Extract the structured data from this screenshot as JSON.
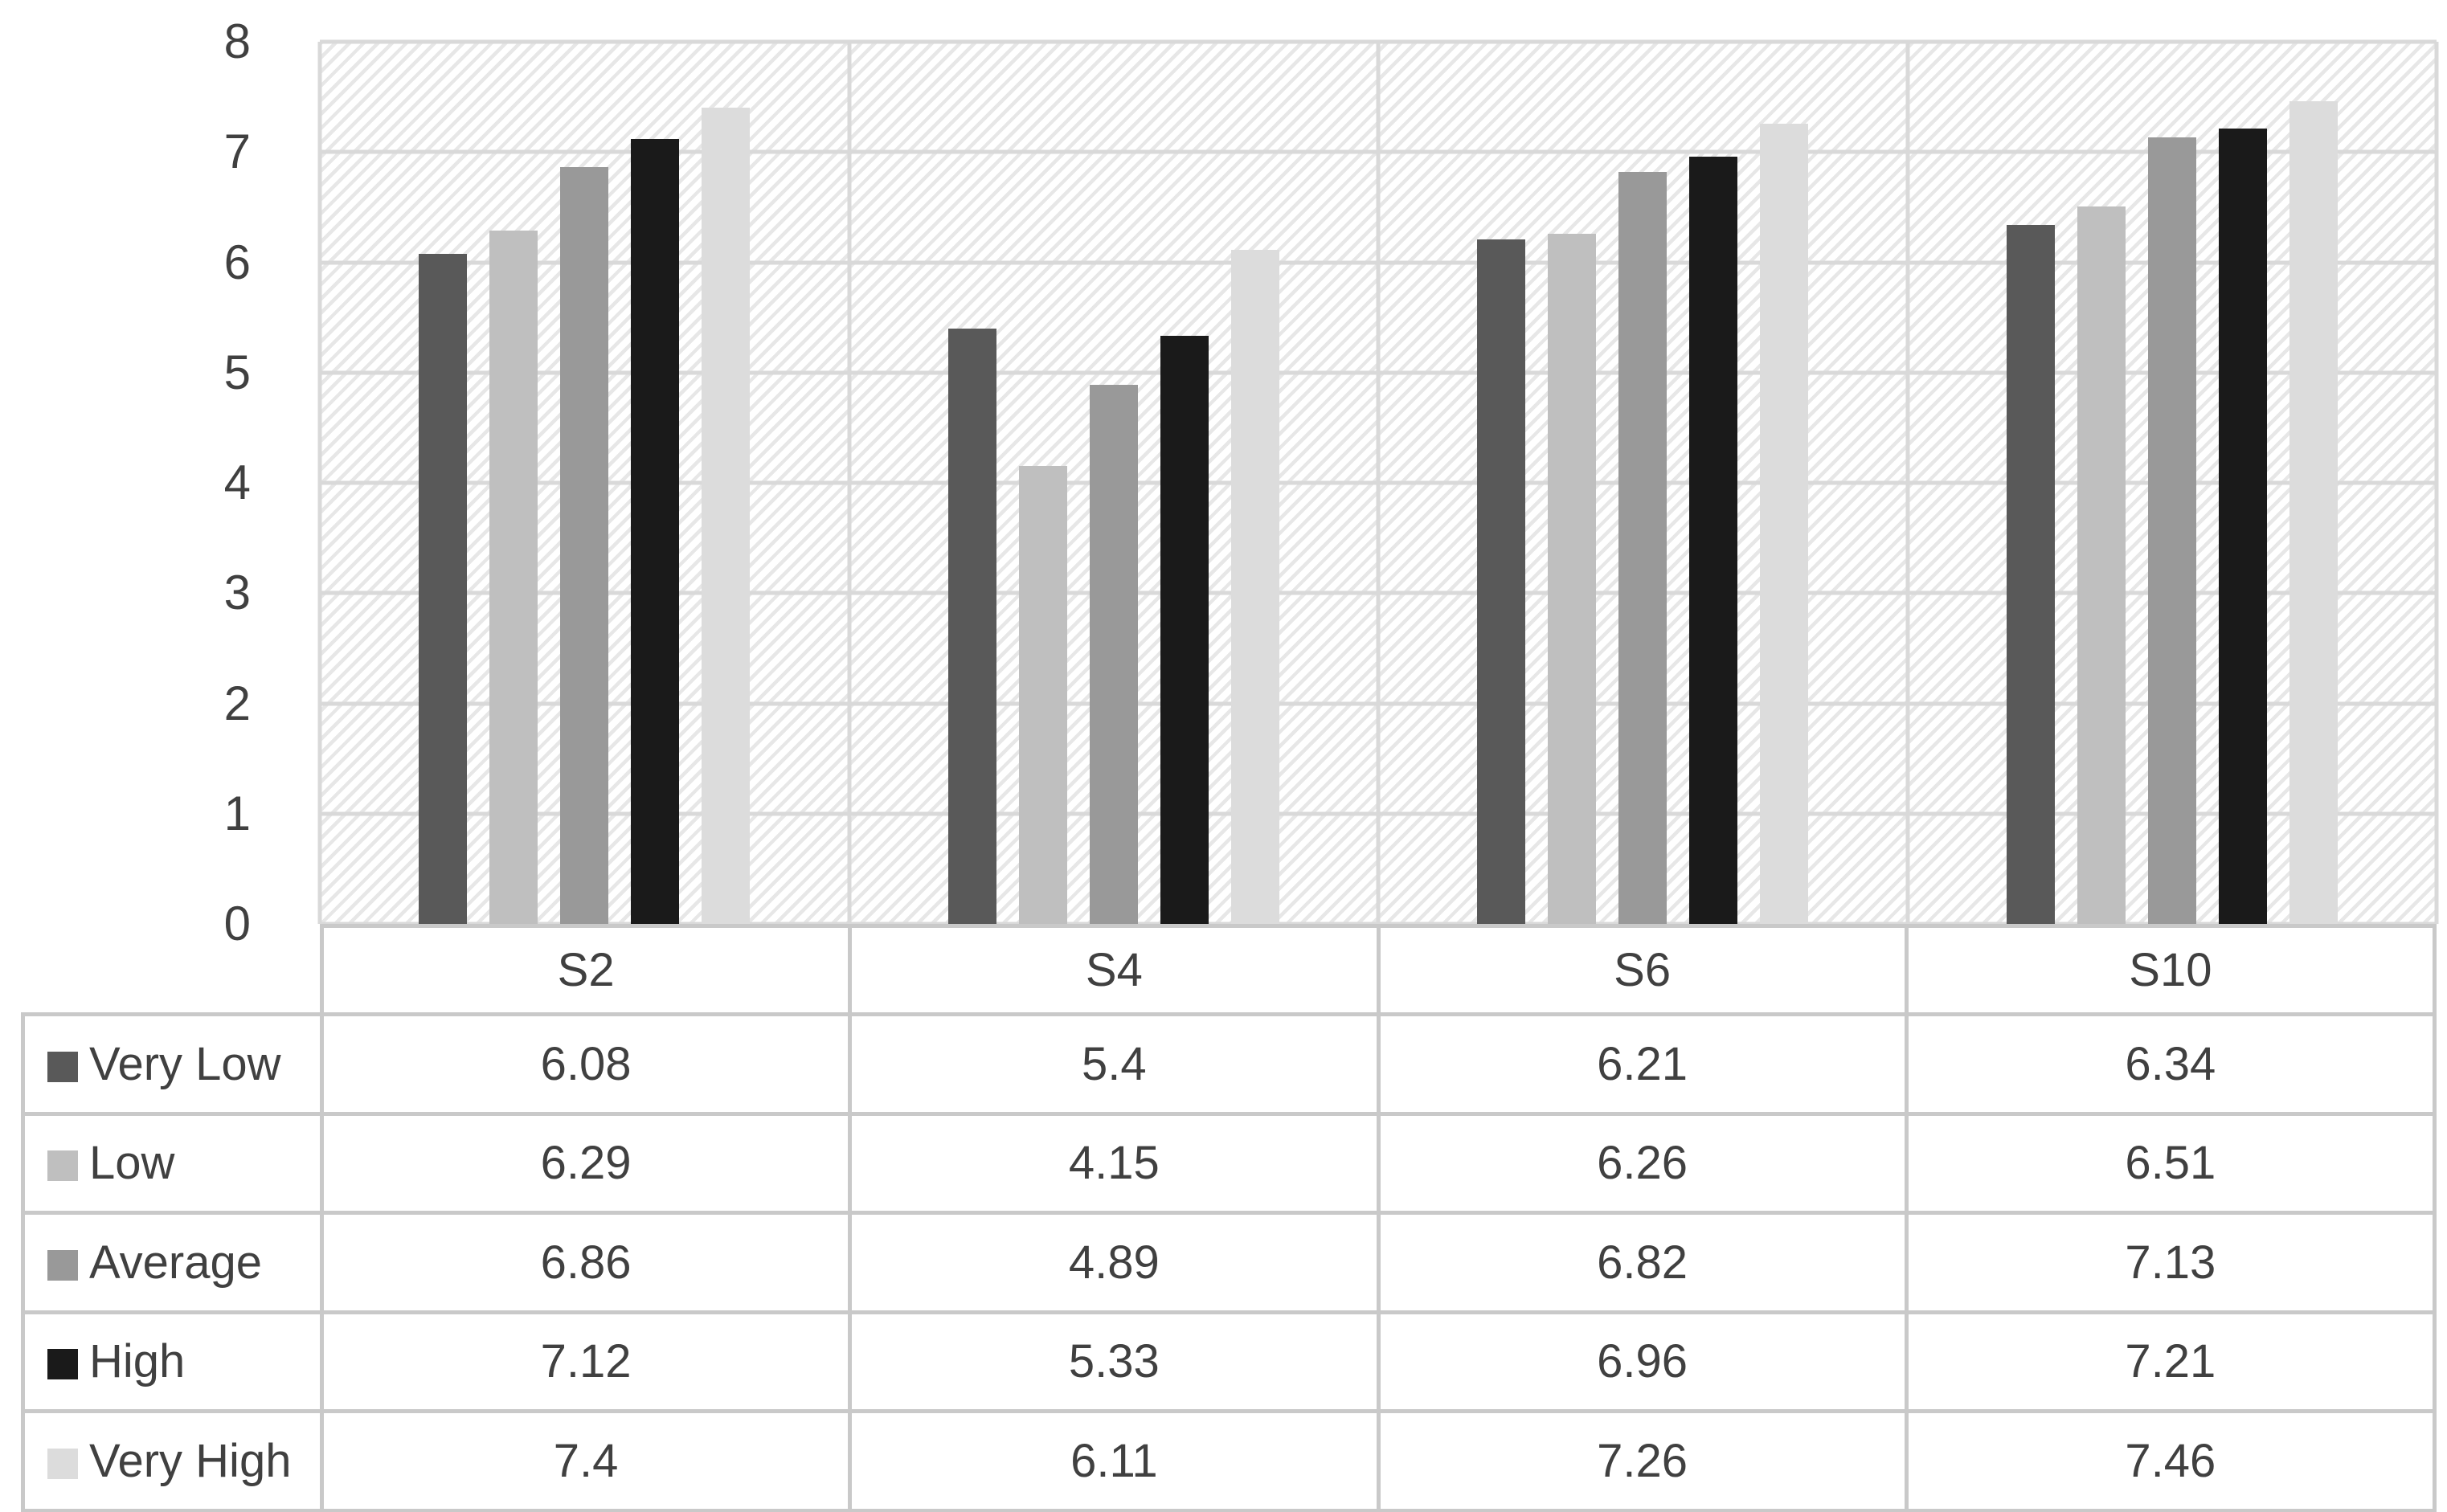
{
  "chart_data": {
    "type": "bar",
    "title": "",
    "categories": [
      "S2",
      "S4",
      "S6",
      "S10"
    ],
    "series": [
      {
        "name": "Very Low",
        "color": "#595959",
        "values": [
          6.08,
          5.4,
          6.21,
          6.34
        ]
      },
      {
        "name": "Low",
        "color": "#bfbfbf",
        "values": [
          6.29,
          4.15,
          6.26,
          6.51
        ]
      },
      {
        "name": "Average",
        "color": "#999999",
        "values": [
          6.86,
          4.89,
          6.82,
          7.13
        ]
      },
      {
        "name": "High",
        "color": "#1a1a1a",
        "values": [
          7.12,
          5.33,
          6.96,
          7.21
        ]
      },
      {
        "name": "Very High",
        "color": "#dcdcdc",
        "values": [
          7.4,
          6.11,
          7.26,
          7.46
        ]
      }
    ],
    "xlabel": "",
    "ylabel": "",
    "ylim": [
      0,
      8
    ],
    "y_ticks": [
      8,
      7,
      6,
      5,
      4,
      3,
      2,
      1,
      0
    ],
    "grid": true,
    "legend_position": "table-left",
    "plot_background": "diagonal-hatch",
    "colors": {
      "gridline": "#d9d9d9",
      "hatch_stripe": "#e7e7e7",
      "axis_text": "#404040",
      "table_border": "#c9c9c9"
    }
  },
  "table": {
    "columns": [
      "S2",
      "S4",
      "S6",
      "S10"
    ],
    "row_labels": [
      "Very Low",
      "Low",
      "Average",
      "High",
      "Very High"
    ],
    "rows": [
      [
        "6.08",
        "5.4",
        "6.21",
        "6.34"
      ],
      [
        "6.29",
        "4.15",
        "6.26",
        "6.51"
      ],
      [
        "6.86",
        "4.89",
        "6.82",
        "7.13"
      ],
      [
        "7.12",
        "5.33",
        "6.96",
        "7.21"
      ],
      [
        "7.4",
        "6.11",
        "7.26",
        "7.46"
      ]
    ]
  }
}
